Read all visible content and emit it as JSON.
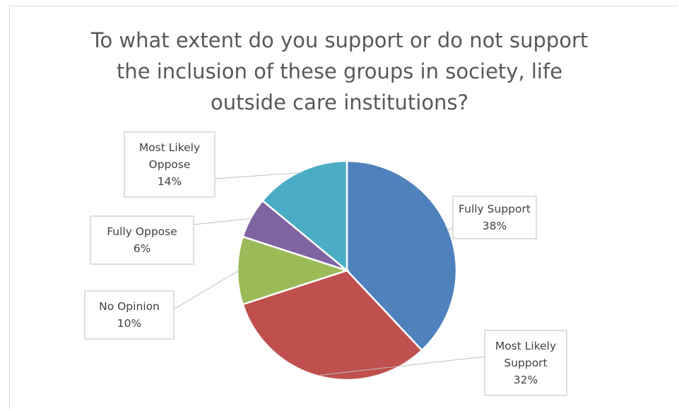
{
  "chart_data": {
    "type": "pie",
    "title_lines": [
      "To what extent do you support or do not support",
      "the inclusion of these groups in society, life",
      "outside care institutions?"
    ],
    "slices": [
      {
        "name": "Fully Support",
        "value": 38,
        "label": "38%",
        "color": "#4f81bd",
        "label_lines": [
          "Fully Support",
          "38%"
        ]
      },
      {
        "name": "Most Likely Support",
        "value": 32,
        "label": "32%",
        "color": "#c0504d",
        "label_lines": [
          "Most Likely",
          "Support",
          "32%"
        ]
      },
      {
        "name": "No Opinion",
        "value": 10,
        "label": "10%",
        "color": "#9bbb59",
        "label_lines": [
          "No Opinion",
          "10%"
        ]
      },
      {
        "name": "Fully Oppose",
        "value": 6,
        "label": "6%",
        "color": "#8064a2",
        "label_lines": [
          "Fully Oppose",
          "6%"
        ]
      },
      {
        "name": "Most Likely Oppose",
        "value": 14,
        "label": "14%",
        "color": "#4bacc6",
        "label_lines": [
          "Most Likely",
          "Oppose",
          "14%"
        ]
      }
    ],
    "start_angle": "12 o'clock, clockwise",
    "legend": "none (data callouts)"
  }
}
